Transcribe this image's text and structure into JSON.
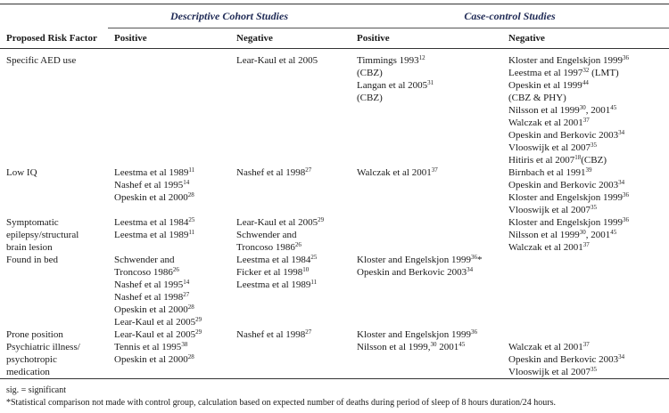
{
  "table": {
    "group_headers": [
      "Descriptive Cohort Studies",
      "Case-control Studies"
    ],
    "columns": [
      "Proposed Risk Factor",
      "Positive",
      "Negative",
      "Positive",
      "Negative"
    ],
    "rows": [
      {
        "factor": [
          "Specific AED use"
        ],
        "cells": [
          [],
          [
            [
              "Lear-Kaul et al 2005"
            ]
          ],
          [
            [
              "Timmings 1993",
              {
                "sup": "12"
              }
            ],
            [
              "(CBZ)"
            ],
            [
              "Langan et al 2005",
              {
                "sup": "31"
              }
            ],
            [
              "(CBZ)"
            ]
          ],
          [
            [
              "Kloster and Engelskjon 1999",
              {
                "sup": "36"
              }
            ],
            [
              "Leestma et al 1997",
              {
                "sup": "32"
              },
              " (LMT)"
            ],
            [
              "Opeskin et al 1999",
              {
                "sup": "44"
              }
            ],
            [
              "(CBZ & PHY)"
            ],
            [
              "Nilsson et al 1999",
              {
                "sup": "30"
              },
              ", 2001",
              {
                "sup": "45"
              }
            ],
            [
              "Walczak et al 2001",
              {
                "sup": "37"
              }
            ],
            [
              "Opeskin and Berkovic 2003",
              {
                "sup": "34"
              }
            ],
            [
              "Vlooswijk et al 2007",
              {
                "sup": "35"
              }
            ],
            [
              "Hitiris et al 2007",
              {
                "sup": "18"
              },
              "(CBZ)"
            ]
          ]
        ]
      },
      {
        "factor": [
          "Low IQ"
        ],
        "cells": [
          [
            [
              "Leestma et al 1989",
              {
                "sup": "11"
              }
            ],
            [
              "Nashef et al 1995",
              {
                "sup": "14"
              }
            ],
            [
              "Opeskin et al 2000",
              {
                "sup": "28"
              }
            ]
          ],
          [
            [
              "Nashef et al 1998",
              {
                "sup": "27"
              }
            ]
          ],
          [
            [
              "Walczak et al 2001",
              {
                "sup": "37"
              }
            ]
          ],
          [
            [
              "Birnbach et al 1991",
              {
                "sup": "39"
              }
            ],
            [
              "Opeskin and Berkovic 2003",
              {
                "sup": "34"
              }
            ],
            [
              "Kloster and Engelskjon 1999",
              {
                "sup": "36"
              }
            ],
            [
              "Vlooswijk et al 2007",
              {
                "sup": "35"
              }
            ]
          ]
        ]
      },
      {
        "factor": [
          "Symptomatic",
          "epilepsy/structural",
          "brain lesion"
        ],
        "cells": [
          [
            [
              "Leestma et al 1984",
              {
                "sup": "25"
              }
            ],
            [
              "Leestma et al 1989",
              {
                "sup": "11"
              }
            ]
          ],
          [
            [
              "Lear-Kaul et al 2005",
              {
                "sup": "29"
              }
            ],
            [
              "Schwender and"
            ],
            [
              "Troncoso 1986",
              {
                "sup": "26"
              }
            ]
          ],
          [],
          [
            [
              "Kloster and Engelskjon 1999",
              {
                "sup": "36"
              }
            ],
            [
              "Nilsson et al 1999",
              {
                "sup": "30"
              },
              ", 2001",
              {
                "sup": "45"
              }
            ],
            [
              "Walczak et al 2001",
              {
                "sup": "37"
              }
            ]
          ]
        ]
      },
      {
        "factor": [
          "Found in bed"
        ],
        "cells": [
          [
            [
              "Schwender and"
            ],
            [
              "Troncoso 1986",
              {
                "sup": "26"
              }
            ],
            [
              "Nashef et al 1995",
              {
                "sup": "14"
              }
            ],
            [
              "Nashef et al 1998",
              {
                "sup": "27"
              }
            ],
            [
              "Opeskin et al 2000",
              {
                "sup": "28"
              }
            ],
            [
              "Lear-Kaul et al 2005",
              {
                "sup": "29"
              }
            ]
          ],
          [
            [
              "Leestma et al 1984",
              {
                "sup": "25"
              }
            ],
            [
              "Ficker et al 1998",
              {
                "sup": "10"
              }
            ],
            [
              "Leestma et al 1989",
              {
                "sup": "11"
              }
            ]
          ],
          [
            [
              "Kloster and Engelskjon 1999",
              {
                "sup": "36"
              },
              "*"
            ],
            [
              "Opeskin and Berkovic 2003",
              {
                "sup": "34"
              }
            ]
          ],
          []
        ]
      },
      {
        "factor": [
          "Prone position"
        ],
        "cells": [
          [
            [
              "Lear-Kaul et al 2005",
              {
                "sup": "29"
              }
            ]
          ],
          [
            [
              "Nashef et al 1998",
              {
                "sup": "27"
              }
            ]
          ],
          [
            [
              "Kloster and Engelskjon 1999",
              {
                "sup": "36"
              }
            ]
          ],
          []
        ]
      },
      {
        "factor": [
          "Psychiatric illness/",
          "psychotropic",
          "medication"
        ],
        "cells": [
          [
            [
              "Tennis et al 1995",
              {
                "sup": "38"
              }
            ],
            [
              "Opeskin et al 2000",
              {
                "sup": "28"
              }
            ]
          ],
          [],
          [
            [
              "Nilsson et al 1999,",
              {
                "sup": "30"
              },
              " 2001",
              {
                "sup": "45"
              }
            ]
          ],
          [
            [
              "Walczak et al 2001",
              {
                "sup": "37"
              }
            ],
            [
              "Opeskin and Berkovic 2003",
              {
                "sup": "34"
              }
            ],
            [
              "Vlooswijk et al 2007",
              {
                "sup": "35"
              }
            ]
          ]
        ]
      }
    ],
    "footnotes": [
      "sig. = significant",
      "*Statistical comparison not made with control group, calculation based on expected number of deaths during period of sleep of 8 hours duration/24 hours."
    ]
  }
}
